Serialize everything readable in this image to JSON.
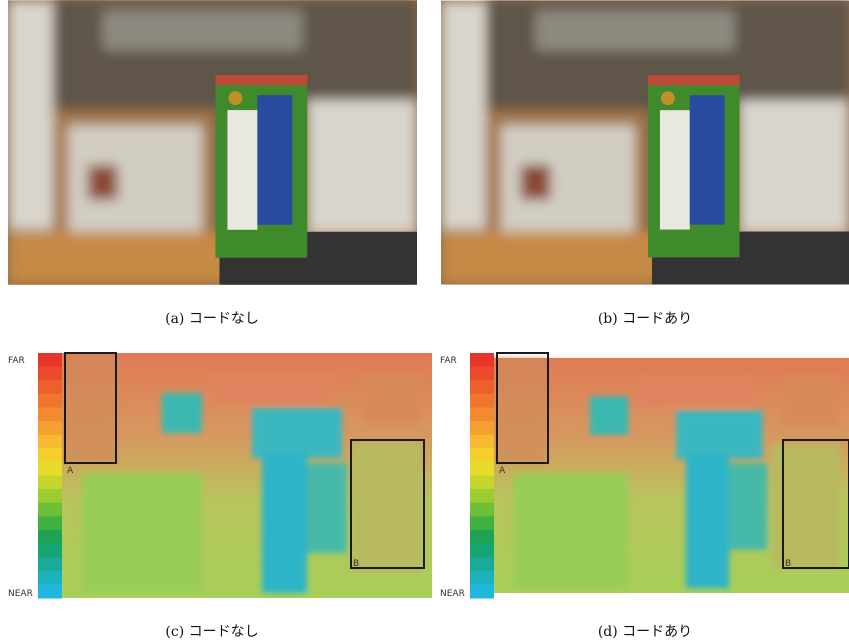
{
  "photos": [
    {
      "caption": "(a) コードなし"
    },
    {
      "caption": "(b) コードあり"
    }
  ],
  "depth_maps": [
    {
      "caption": "(c) コードなし",
      "far_label": "FAR",
      "near_label": "NEAR",
      "regions": [
        "A",
        "B"
      ]
    },
    {
      "caption": "(d) コードあり",
      "far_label": "FAR",
      "near_label": "NEAR",
      "regions": [
        "A",
        "B"
      ]
    }
  ]
}
